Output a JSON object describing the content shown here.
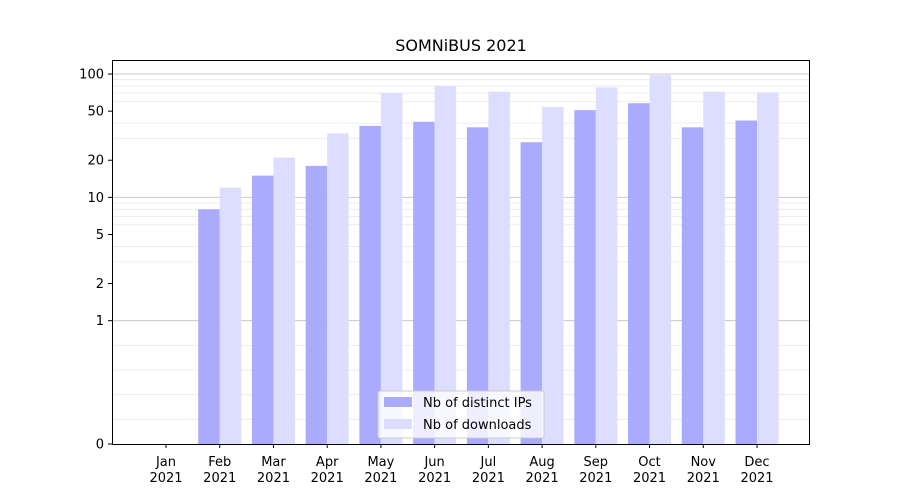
{
  "chart_data": {
    "type": "bar",
    "title": "SOMNiBUS 2021",
    "xlabel": "",
    "ylabel": "",
    "y_scale": "symlog",
    "ylim": [
      0,
      130
    ],
    "y_ticks": [
      0,
      1,
      2,
      5,
      10,
      20,
      50,
      100
    ],
    "grid": "horizontal",
    "legend_position": "bottom-center",
    "categories": [
      [
        "Jan",
        "2021"
      ],
      [
        "Feb",
        "2021"
      ],
      [
        "Mar",
        "2021"
      ],
      [
        "Apr",
        "2021"
      ],
      [
        "May",
        "2021"
      ],
      [
        "Jun",
        "2021"
      ],
      [
        "Jul",
        "2021"
      ],
      [
        "Aug",
        "2021"
      ],
      [
        "Sep",
        "2021"
      ],
      [
        "Oct",
        "2021"
      ],
      [
        "Nov",
        "2021"
      ],
      [
        "Dec",
        "2021"
      ]
    ],
    "series": [
      {
        "name": "Nb of distinct IPs",
        "color": "#aaaaff",
        "values": [
          0,
          8,
          15,
          18,
          38,
          41,
          37,
          28,
          51,
          58,
          37,
          42
        ]
      },
      {
        "name": "Nb of downloads",
        "color": "#ddddff",
        "values": [
          0,
          12,
          21,
          33,
          70,
          80,
          72,
          54,
          78,
          98,
          72,
          71
        ]
      }
    ]
  }
}
